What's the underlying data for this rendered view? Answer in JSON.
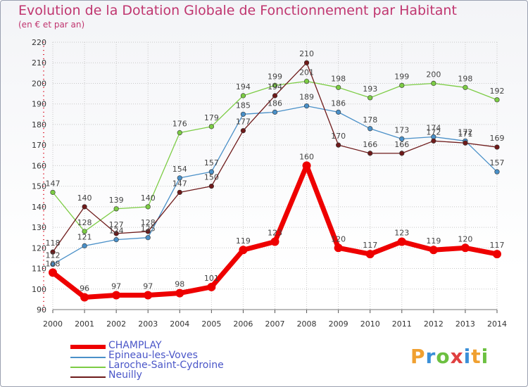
{
  "header": {
    "title": "Evolution de la Dotation Globale de Fonctionnement par Habitant",
    "subtitle": "(en € et par an)"
  },
  "brand": {
    "letters": [
      "P",
      "r",
      "o",
      "x",
      "i",
      "t",
      "i"
    ],
    "colors": [
      "#f0a030",
      "#3a8fd8",
      "#6cc040",
      "#e04040",
      "#3a8fd8",
      "#f0a030",
      "#6cc040"
    ]
  },
  "chart_data": {
    "type": "line",
    "title": "Evolution de la Dotation Globale de Fonctionnement par Habitant",
    "subtitle": "(en € et par an)",
    "xlabel": "",
    "ylabel": "",
    "x": [
      2000,
      2001,
      2002,
      2003,
      2004,
      2005,
      2006,
      2007,
      2008,
      2009,
      2010,
      2011,
      2012,
      2013,
      2014
    ],
    "ylim": [
      90,
      220
    ],
    "yticks": [
      90,
      100,
      110,
      120,
      130,
      140,
      150,
      160,
      170,
      180,
      190,
      200,
      210,
      220
    ],
    "grid": true,
    "legend_position": "bottom-left",
    "series": [
      {
        "name": "CHAMPLAY",
        "color": "#ee0000",
        "values": [
          108,
          96,
          97,
          97,
          98,
          101,
          119,
          123,
          160,
          120,
          117,
          123,
          119,
          120,
          117
        ]
      },
      {
        "name": "Epineau-les-Voves",
        "color": "#4a90c8",
        "values": [
          112,
          121,
          124,
          125,
          154,
          157,
          185,
          186,
          189,
          186,
          178,
          173,
          174,
          172,
          157
        ]
      },
      {
        "name": "Laroche-Saint-Cydroine",
        "color": "#7ccc44",
        "values": [
          147,
          128,
          139,
          140,
          176,
          179,
          194,
          199,
          201,
          198,
          193,
          199,
          200,
          198,
          192
        ]
      },
      {
        "name": "Neuilly",
        "color": "#6e1a1a",
        "values": [
          118,
          140,
          127,
          128,
          147,
          150,
          177,
          194,
          210,
          170,
          166,
          166,
          172,
          171,
          169
        ]
      }
    ]
  }
}
